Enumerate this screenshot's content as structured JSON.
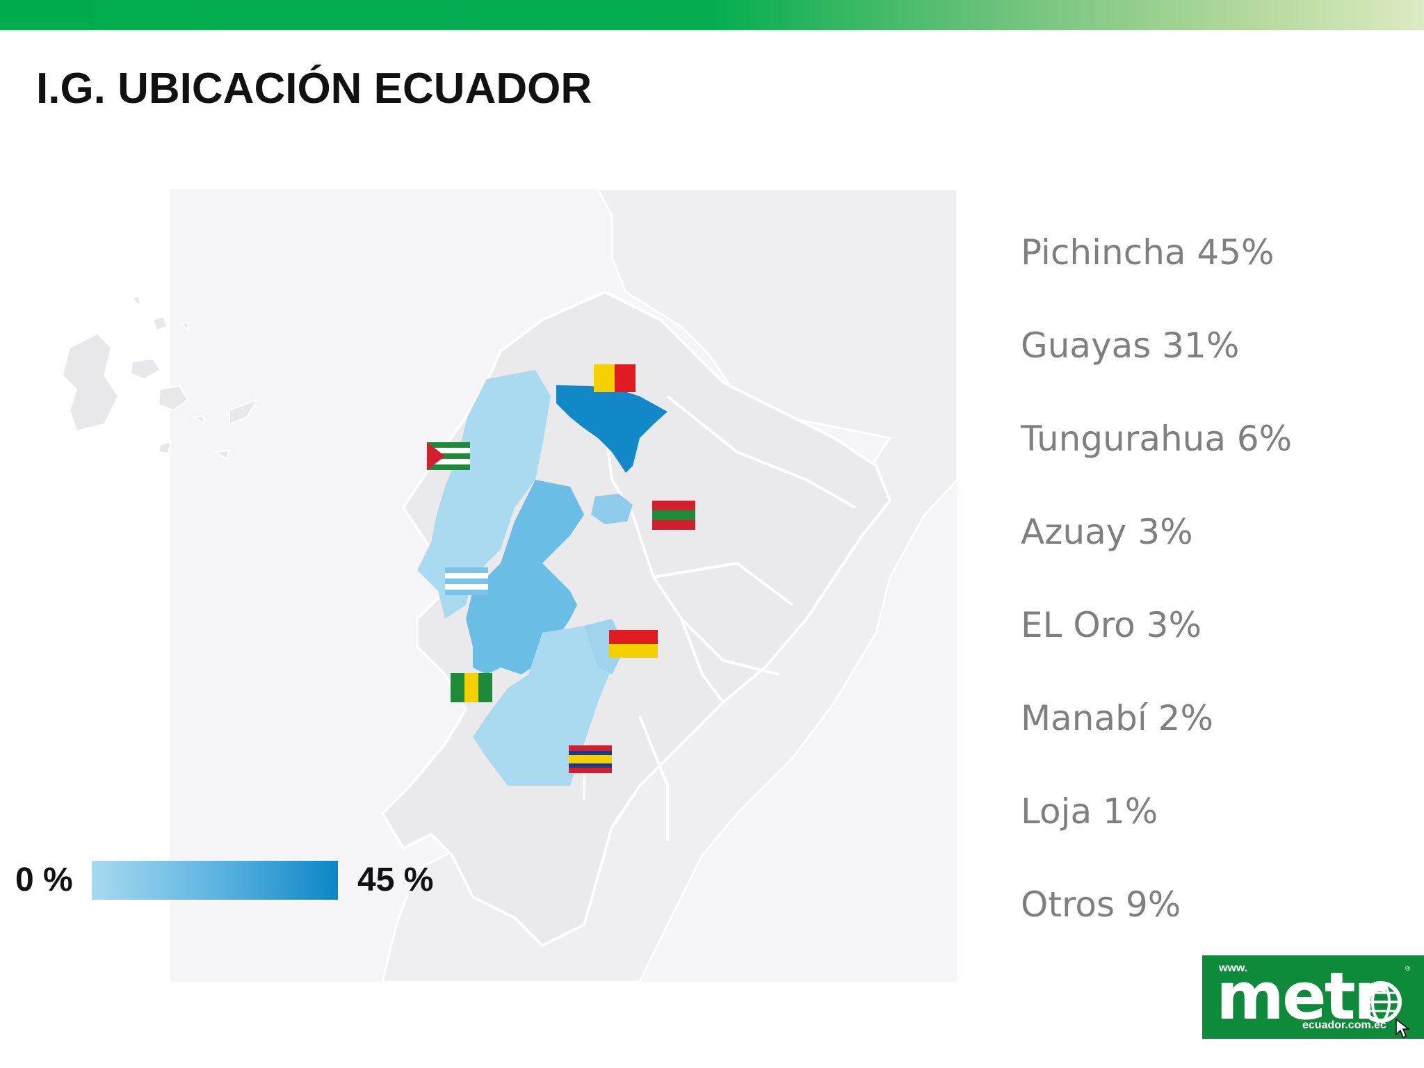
{
  "title": "I.G. UBICACIÓN ECUADOR",
  "colors": {
    "top_bar_start": "#00ab4e",
    "top_bar_end": "#dcebc4",
    "scale_low": "#a8daf0",
    "scale_high": "#0c86c6",
    "map_background": "#f5f5f7",
    "map_land": "#e9e9eb",
    "logo_green": "#0e8a3b"
  },
  "scale": {
    "min_label": "0 %",
    "max_label": "45 %"
  },
  "provinces": [
    {
      "label": "Pichincha 45%"
    },
    {
      "label": "Guayas 31%"
    },
    {
      "label": "Tungurahua 6%"
    },
    {
      "label": "Azuay 3%"
    },
    {
      "label": "EL Oro 3%"
    },
    {
      "label": "Manabí 2%"
    },
    {
      "label": "Loja 1%"
    },
    {
      "label": "Otros 9%"
    }
  ],
  "logo": {
    "prefix": "www.",
    "word": "metr",
    "suffix": "ecuador.com.ec",
    "registered": "®",
    "icon": "globe-icon"
  }
}
